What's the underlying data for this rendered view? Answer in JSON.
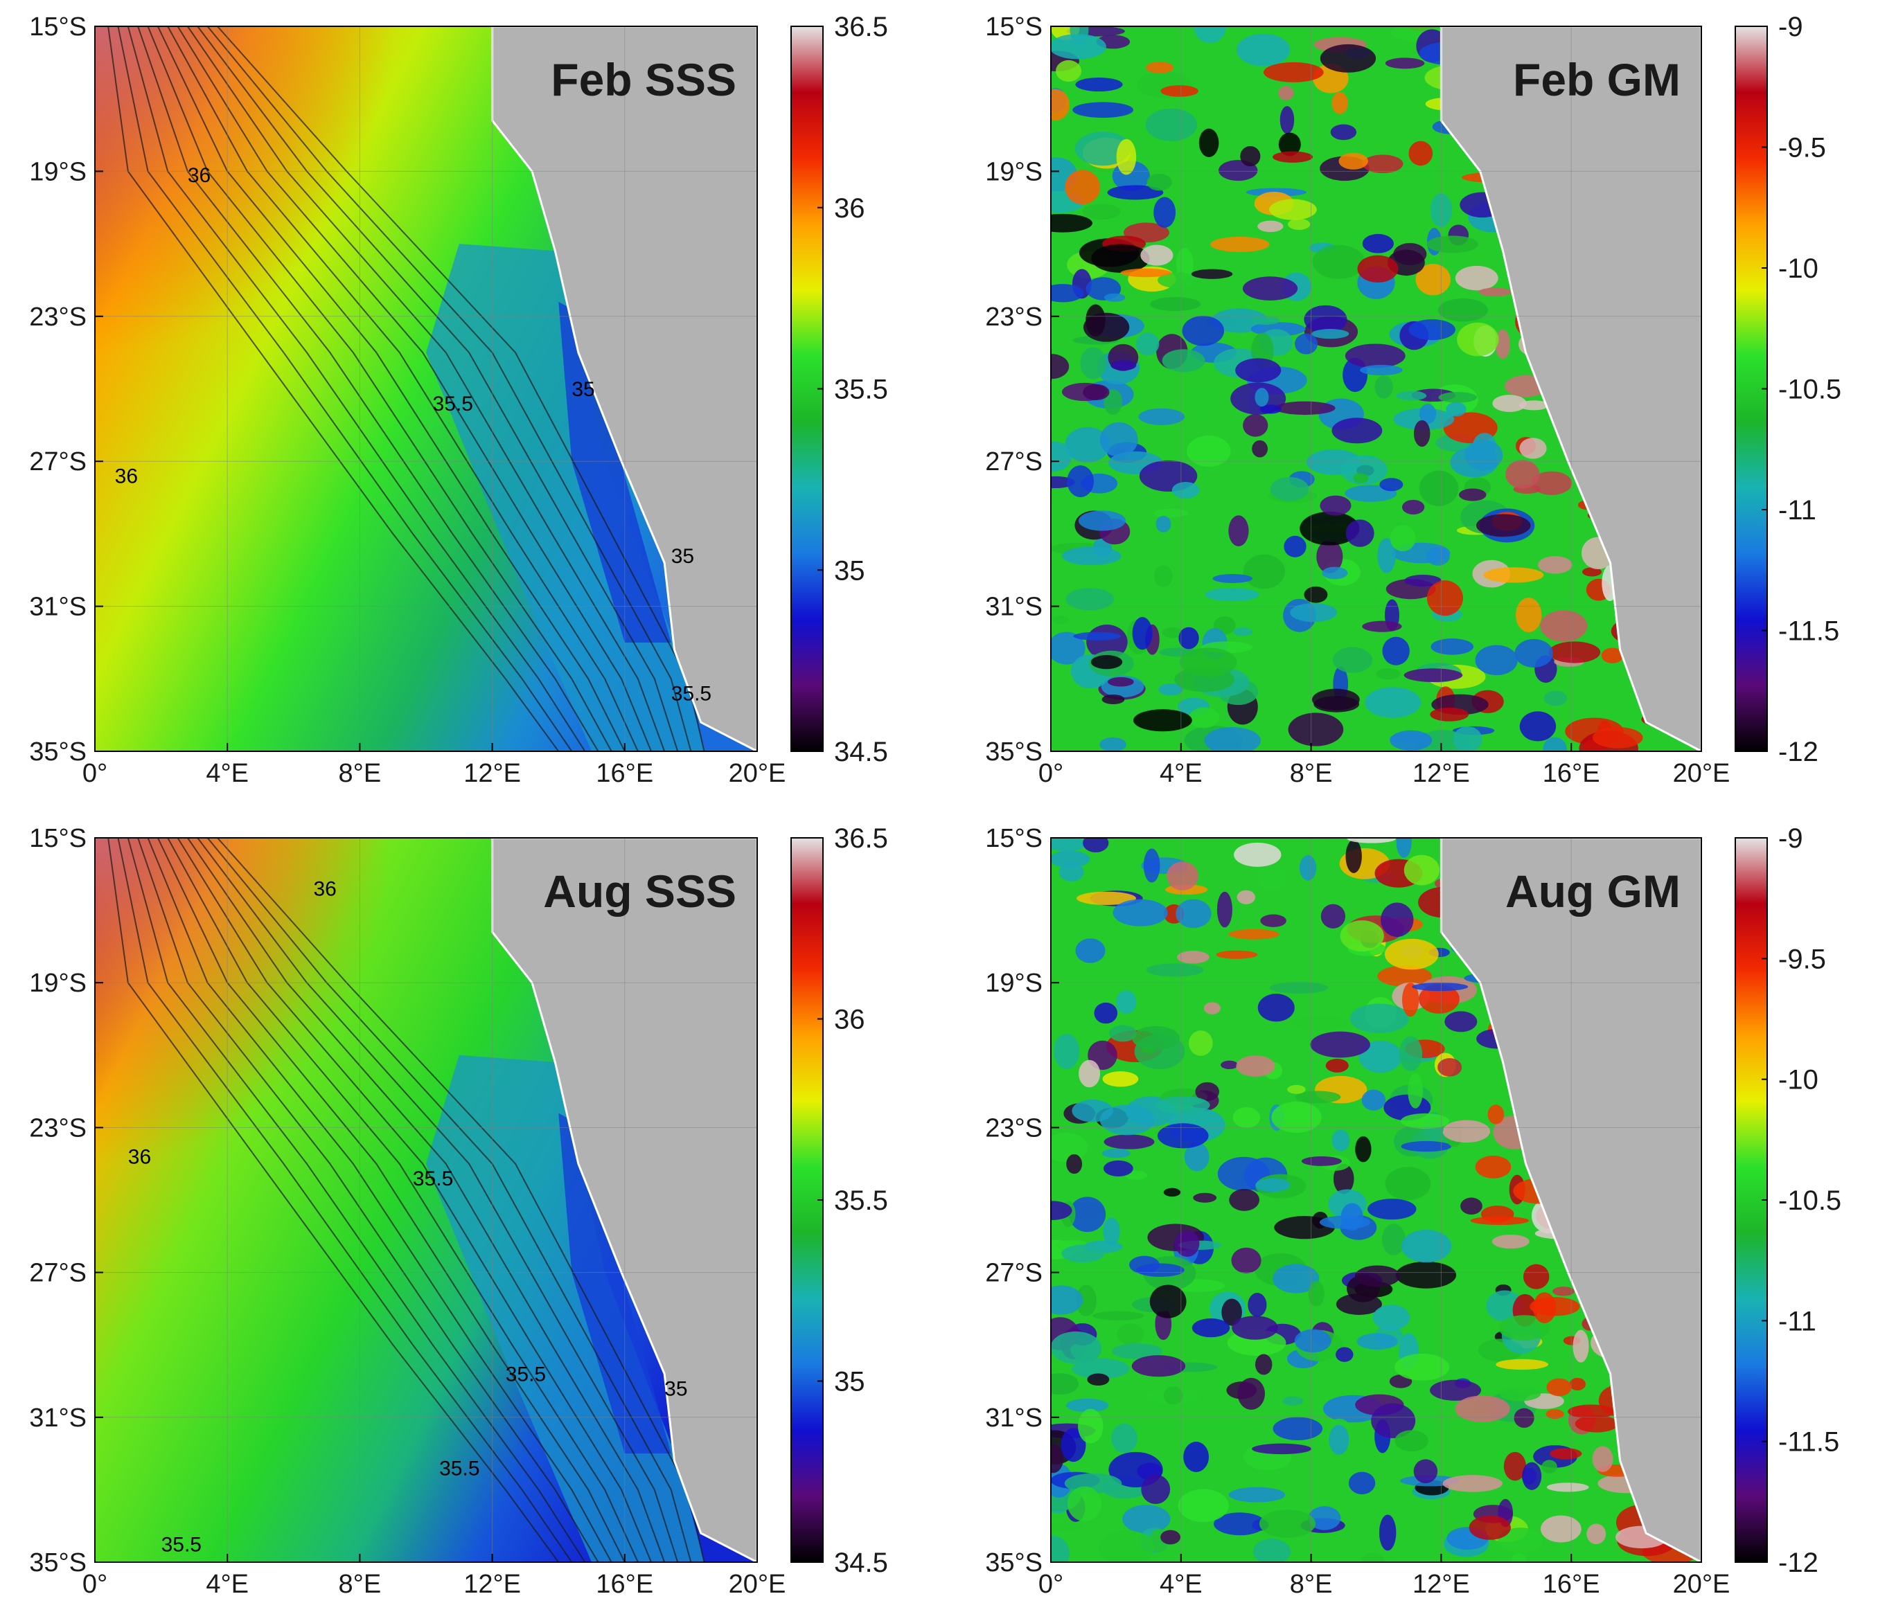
{
  "figure": {
    "panels": [
      {
        "id": "feb-sss",
        "title": "Feb SSS",
        "field": "sss",
        "season": "feb",
        "x_ticks": [
          "0°",
          "4°E",
          "8°E",
          "12°E",
          "16°E",
          "20°E"
        ],
        "y_ticks": [
          "15°S",
          "19°S",
          "23°S",
          "27°S",
          "31°S",
          "35°S"
        ],
        "colorbar": {
          "ticks": [
            "36.5",
            "36",
            "35.5",
            "35",
            "34.5"
          ],
          "range": [
            34.5,
            36.5
          ]
        },
        "contour_labels": [
          "36",
          "36",
          "35.5",
          "35",
          "35",
          "35.5"
        ]
      },
      {
        "id": "feb-gm",
        "title": "Feb GM",
        "field": "gm",
        "season": "feb",
        "x_ticks": [
          "0°",
          "4°E",
          "8°E",
          "12°E",
          "16°E",
          "20°E"
        ],
        "y_ticks": [
          "15°S",
          "19°S",
          "23°S",
          "27°S",
          "31°S",
          "35°S"
        ],
        "colorbar": {
          "ticks": [
            "-9",
            "-9.5",
            "-10",
            "-10.5",
            "-11",
            "-11.5",
            "-12"
          ],
          "range": [
            -12,
            -9
          ]
        },
        "contour_labels": []
      },
      {
        "id": "aug-sss",
        "title": "Aug SSS",
        "field": "sss",
        "season": "aug",
        "x_ticks": [
          "0°",
          "4°E",
          "8°E",
          "12°E",
          "16°E",
          "20°E"
        ],
        "y_ticks": [
          "15°S",
          "19°S",
          "23°S",
          "27°S",
          "31°S",
          "35°S"
        ],
        "colorbar": {
          "ticks": [
            "36.5",
            "36",
            "35.5",
            "35",
            "34.5"
          ],
          "range": [
            34.5,
            36.5
          ]
        },
        "contour_labels": [
          "36",
          "36",
          "35.5",
          "35.5",
          "35",
          "35.5",
          "35.5"
        ]
      },
      {
        "id": "aug-gm",
        "title": "Aug GM",
        "field": "gm",
        "season": "aug",
        "x_ticks": [
          "0°",
          "4°E",
          "8°E",
          "12°E",
          "16°E",
          "20°E"
        ],
        "y_ticks": [
          "15°S",
          "19°S",
          "23°S",
          "27°S",
          "31°S",
          "35°S"
        ],
        "colorbar": {
          "ticks": [
            "-9",
            "-9.5",
            "-10",
            "-10.5",
            "-11",
            "-11.5",
            "-12"
          ],
          "range": [
            -12,
            -9
          ]
        },
        "contour_labels": []
      }
    ],
    "colors": {
      "land": "#b2b2b2",
      "colormap": [
        "#000000",
        "#5a0a78",
        "#1010d0",
        "#1a7ae0",
        "#19b2b2",
        "#1db52a",
        "#2be02b",
        "#e6f000",
        "#ffa000",
        "#f22a00",
        "#b80012",
        "#e4e4e4"
      ]
    }
  }
}
